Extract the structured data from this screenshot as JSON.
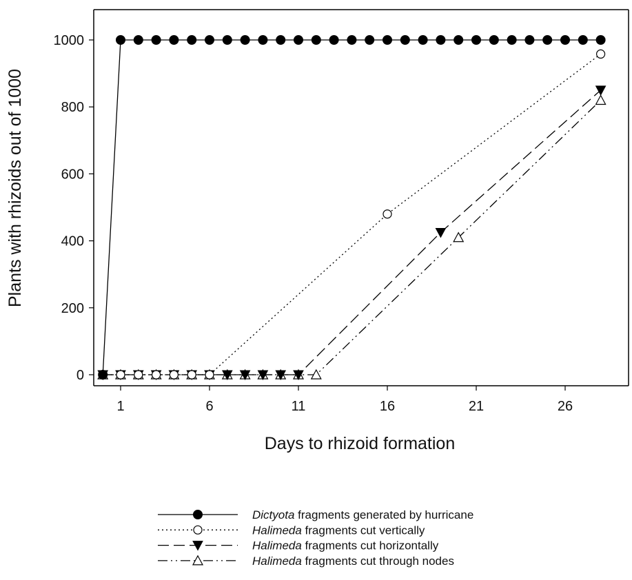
{
  "chart_data": {
    "type": "line",
    "title": "",
    "xlabel": "Days to rhizoid formation",
    "ylabel": "Plants with rhizoids out of 1000",
    "xlim": [
      -0.5,
      30
    ],
    "ylim": [
      -30,
      1110
    ],
    "xticks": [
      1,
      6,
      11,
      16,
      21,
      26
    ],
    "yticks": [
      0,
      200,
      400,
      600,
      800,
      1000
    ],
    "grid": false,
    "legend_position": "bottom",
    "series": [
      {
        "name_italic": "Dictyota",
        "name_rest": " fragments generated by hurricane",
        "line_style": "solid",
        "marker": "filled-circle",
        "color": "#000000",
        "points": [
          [
            0,
            0
          ],
          [
            1,
            1000
          ],
          [
            2,
            1000
          ],
          [
            3,
            1000
          ],
          [
            4,
            1000
          ],
          [
            5,
            1000
          ],
          [
            6,
            1000
          ],
          [
            7,
            1000
          ],
          [
            8,
            1000
          ],
          [
            9,
            1000
          ],
          [
            10,
            1000
          ],
          [
            11,
            1000
          ],
          [
            12,
            1000
          ],
          [
            13,
            1000
          ],
          [
            14,
            1000
          ],
          [
            15,
            1000
          ],
          [
            16,
            1000
          ],
          [
            17,
            1000
          ],
          [
            18,
            1000
          ],
          [
            19,
            1000
          ],
          [
            20,
            1000
          ],
          [
            21,
            1000
          ],
          [
            22,
            1000
          ],
          [
            23,
            1000
          ],
          [
            24,
            1000
          ],
          [
            25,
            1000
          ],
          [
            26,
            1000
          ],
          [
            27,
            1000
          ],
          [
            28,
            1000
          ]
        ]
      },
      {
        "name_italic": "Halimeda",
        "name_rest": " fragments cut vertically",
        "line_style": "dotted",
        "marker": "open-circle",
        "color": "#000000",
        "points": [
          [
            0,
            0
          ],
          [
            1,
            0
          ],
          [
            2,
            0
          ],
          [
            3,
            0
          ],
          [
            4,
            0
          ],
          [
            5,
            0
          ],
          [
            6,
            0
          ],
          [
            16,
            480
          ],
          [
            28,
            958
          ]
        ]
      },
      {
        "name_italic": "Halimeda",
        "name_rest": " fragments cut horizontally",
        "line_style": "dashed",
        "marker": "filled-triangle-down",
        "color": "#000000",
        "points": [
          [
            0,
            0
          ],
          [
            1,
            0
          ],
          [
            2,
            0
          ],
          [
            3,
            0
          ],
          [
            4,
            0
          ],
          [
            5,
            0
          ],
          [
            6,
            0
          ],
          [
            7,
            0
          ],
          [
            8,
            0
          ],
          [
            9,
            0
          ],
          [
            10,
            0
          ],
          [
            11,
            0
          ],
          [
            19,
            425
          ],
          [
            28,
            850
          ]
        ]
      },
      {
        "name_italic": "Halimeda",
        "name_rest": " fragments cut through nodes",
        "line_style": "dash-dot-dot",
        "marker": "open-triangle-up",
        "color": "#000000",
        "points": [
          [
            0,
            0
          ],
          [
            1,
            0
          ],
          [
            2,
            0
          ],
          [
            3,
            0
          ],
          [
            4,
            0
          ],
          [
            5,
            0
          ],
          [
            6,
            0
          ],
          [
            7,
            0
          ],
          [
            8,
            0
          ],
          [
            9,
            0
          ],
          [
            10,
            0
          ],
          [
            11,
            0
          ],
          [
            12,
            0
          ],
          [
            20,
            410
          ],
          [
            28,
            820
          ]
        ]
      }
    ]
  }
}
